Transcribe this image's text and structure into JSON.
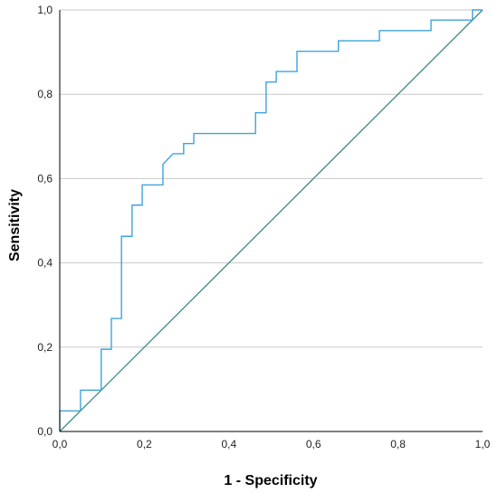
{
  "chart_data": {
    "type": "line",
    "title": "",
    "xlabel": "1 - Specificity",
    "ylabel": "Sensitivity",
    "xlim": [
      0,
      1
    ],
    "ylim": [
      0,
      1
    ],
    "x_ticks": [
      "0,0",
      "0,2",
      "0,4",
      "0,6",
      "0,8",
      "1,0"
    ],
    "y_ticks": [
      "0,0",
      "0,2",
      "0,4",
      "0,6",
      "0,8",
      "1,0"
    ],
    "grid": "horizontal",
    "legend": "none",
    "colors": {
      "roc": "#3fa3dc",
      "reference": "#3d8a86",
      "grid": "#c8c8c8",
      "axis": "#000000"
    },
    "series": [
      {
        "values": [
          [
            0.0,
            0.0
          ],
          [
            0.0,
            0.049
          ],
          [
            0.049,
            0.049
          ],
          [
            0.049,
            0.098
          ],
          [
            0.098,
            0.098
          ],
          [
            0.098,
            0.195
          ],
          [
            0.122,
            0.195
          ],
          [
            0.122,
            0.268
          ],
          [
            0.146,
            0.268
          ],
          [
            0.146,
            0.463
          ],
          [
            0.171,
            0.463
          ],
          [
            0.171,
            0.537
          ],
          [
            0.195,
            0.537
          ],
          [
            0.195,
            0.585
          ],
          [
            0.244,
            0.585
          ],
          [
            0.244,
            0.634
          ],
          [
            0.268,
            0.659
          ],
          [
            0.293,
            0.659
          ],
          [
            0.293,
            0.683
          ],
          [
            0.317,
            0.683
          ],
          [
            0.317,
            0.707
          ],
          [
            0.463,
            0.707
          ],
          [
            0.463,
            0.756
          ],
          [
            0.488,
            0.756
          ],
          [
            0.488,
            0.829
          ],
          [
            0.512,
            0.829
          ],
          [
            0.512,
            0.854
          ],
          [
            0.561,
            0.854
          ],
          [
            0.561,
            0.902
          ],
          [
            0.659,
            0.902
          ],
          [
            0.659,
            0.927
          ],
          [
            0.756,
            0.927
          ],
          [
            0.756,
            0.951
          ],
          [
            0.878,
            0.951
          ],
          [
            0.878,
            0.976
          ],
          [
            0.976,
            0.976
          ],
          [
            0.976,
            1.0
          ],
          [
            1.0,
            1.0
          ]
        ]
      },
      {
        "values": [
          [
            0,
            0
          ],
          [
            1,
            1
          ]
        ]
      }
    ]
  }
}
